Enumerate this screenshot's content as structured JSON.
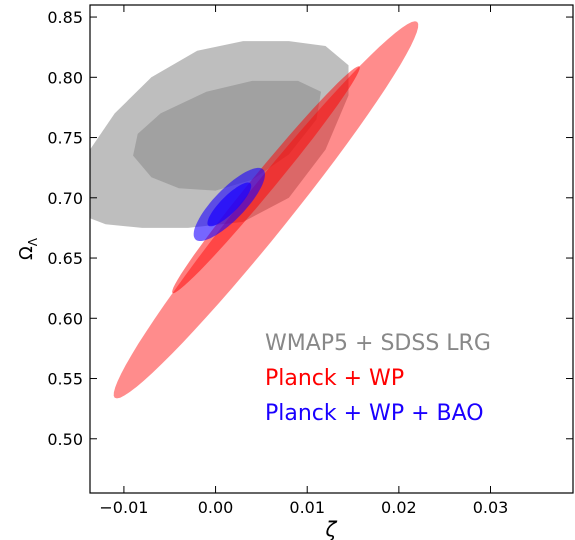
{
  "chart_data": {
    "type": "scatter",
    "subtype": "confidence-contours",
    "xlabel": "ζ",
    "ylabel_base": "Ω",
    "ylabel_sub": "Λ",
    "xlim": [
      -0.0137,
      0.039
    ],
    "ylim": [
      0.455,
      0.86
    ],
    "xticks": [
      -0.01,
      0.0,
      0.01,
      0.02,
      0.03
    ],
    "xtick_labels": [
      "−0.01",
      "0.00",
      "0.01",
      "0.02",
      "0.03"
    ],
    "yticks": [
      0.5,
      0.55,
      0.6,
      0.65,
      0.7,
      0.75,
      0.8,
      0.85
    ],
    "ytick_labels": [
      "0.50",
      "0.55",
      "0.60",
      "0.65",
      "0.70",
      "0.75",
      "0.80",
      "0.85"
    ],
    "grid": false,
    "legend_position": "bottom-right",
    "series": [
      {
        "name": "WMAP5 + SDSS LRG",
        "color": "#888888",
        "contours": [
          {
            "level": "95%",
            "opacity": 0.55,
            "points": [
              [
                -0.0137,
                0.683
              ],
              [
                -0.012,
                0.678
              ],
              [
                -0.008,
                0.675
              ],
              [
                -0.003,
                0.675
              ],
              [
                0.003,
                0.68
              ],
              [
                0.008,
                0.7
              ],
              [
                0.012,
                0.74
              ],
              [
                0.0145,
                0.785
              ],
              [
                0.0145,
                0.81
              ],
              [
                0.012,
                0.826
              ],
              [
                0.008,
                0.83
              ],
              [
                0.003,
                0.83
              ],
              [
                -0.002,
                0.822
              ],
              [
                -0.007,
                0.8
              ],
              [
                -0.011,
                0.77
              ],
              [
                -0.0137,
                0.74
              ]
            ]
          },
          {
            "level": "68%",
            "opacity": 0.55,
            "points": [
              [
                -0.009,
                0.735
              ],
              [
                -0.007,
                0.717
              ],
              [
                -0.004,
                0.708
              ],
              [
                0.0,
                0.706
              ],
              [
                0.004,
                0.715
              ],
              [
                0.008,
                0.736
              ],
              [
                0.011,
                0.765
              ],
              [
                0.0115,
                0.788
              ],
              [
                0.009,
                0.797
              ],
              [
                0.004,
                0.797
              ],
              [
                -0.001,
                0.788
              ],
              [
                -0.006,
                0.77
              ],
              [
                -0.0085,
                0.753
              ]
            ]
          }
        ]
      },
      {
        "name": "Planck + WP",
        "color": "#ff0000",
        "contours": [
          {
            "level": "95%",
            "opacity": 0.45,
            "center": [
              0.0055,
              0.69
            ],
            "semi_major": [
              0.0165,
              0.156
            ],
            "semi_minor": [
              0.002,
              -0.0129
            ]
          },
          {
            "level": "68%",
            "opacity": 0.5,
            "center": [
              0.0055,
              0.715
            ],
            "semi_major": [
              0.0102,
              0.094
            ],
            "semi_minor": [
              0.0009,
              -0.0058
            ]
          }
        ]
      },
      {
        "name": "Planck + WP + BAO",
        "color": "#1a00ff",
        "contours": [
          {
            "level": "95%",
            "opacity": 0.6,
            "center": [
              0.0015,
              0.6945
            ],
            "semi_major": [
              0.0037,
              0.029
            ],
            "semi_minor": [
              0.0012,
              -0.009
            ]
          },
          {
            "level": "68%",
            "opacity": 0.7,
            "center": [
              0.0015,
              0.6945
            ],
            "semi_major": [
              0.0023,
              0.0175
            ],
            "semi_minor": [
              0.00065,
              -0.005
            ]
          }
        ]
      }
    ]
  }
}
